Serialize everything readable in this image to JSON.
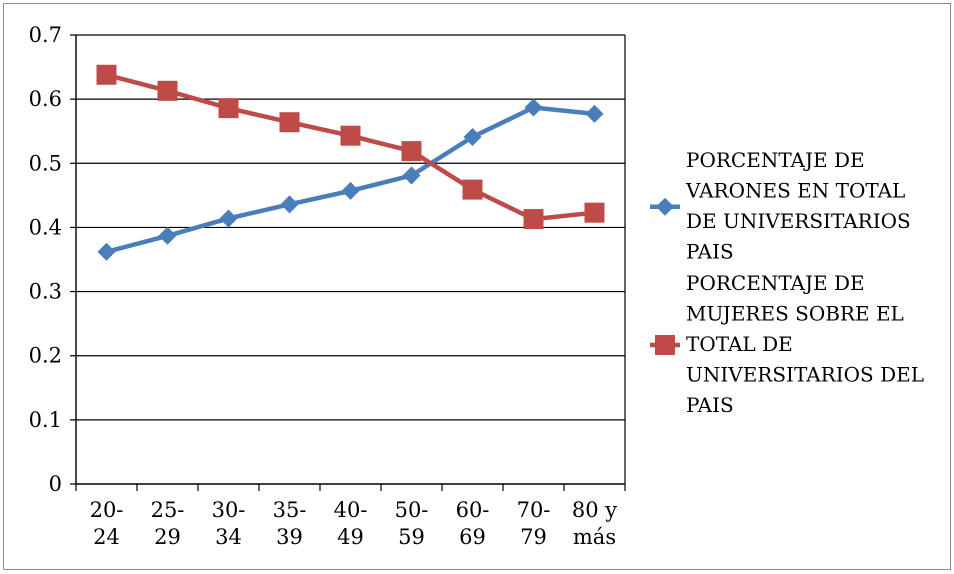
{
  "chart_data": {
    "type": "line",
    "title": "",
    "xlabel": "",
    "ylabel": "",
    "categories": [
      [
        "20-",
        "24"
      ],
      [
        "25-",
        "29"
      ],
      [
        "30-",
        "34"
      ],
      [
        "35-",
        "39"
      ],
      [
        "40-",
        "49"
      ],
      [
        "50-",
        "59"
      ],
      [
        "60-",
        "69"
      ],
      [
        "70-",
        "79"
      ],
      [
        "80 y",
        "más"
      ]
    ],
    "ylim": [
      0,
      0.7
    ],
    "y_ticks": [
      "0",
      "0.1",
      "0.2",
      "0.3",
      "0.4",
      "0.5",
      "0.6",
      "0.7"
    ],
    "grid": "horizontal",
    "legend_position": "right",
    "series": [
      {
        "name": [
          "PORCENTAJE DE",
          "VARONES EN TOTAL",
          "DE UNIVERSITARIOS",
          "PAIS"
        ],
        "color": "#4a7ebb",
        "marker": "diamond",
        "values": [
          0.362,
          0.387,
          0.414,
          0.436,
          0.457,
          0.481,
          0.541,
          0.587,
          0.577
        ]
      },
      {
        "name": [
          "PORCENTAJE DE",
          "MUJERES SOBRE EL",
          "TOTAL DE",
          "UNIVERSITARIOS DEL",
          "PAIS"
        ],
        "color": "#be4b48",
        "marker": "square",
        "values": [
          0.638,
          0.613,
          0.586,
          0.564,
          0.543,
          0.519,
          0.459,
          0.413,
          0.423
        ]
      }
    ]
  }
}
